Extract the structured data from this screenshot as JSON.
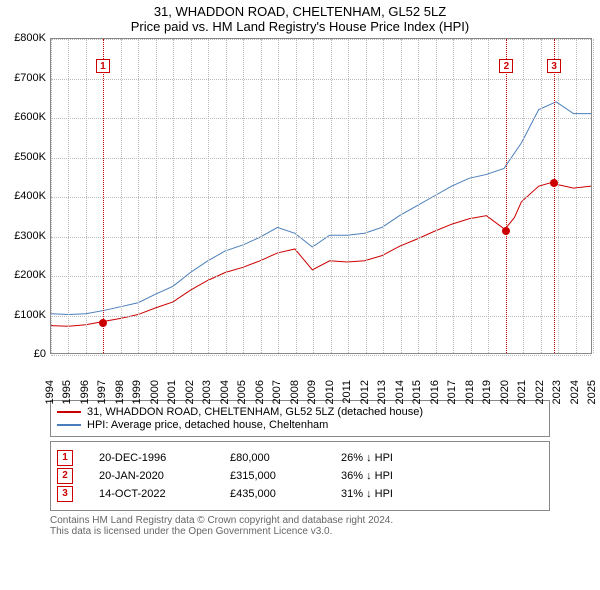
{
  "title_main": "31, WHADDON ROAD, CHELTENHAM, GL52 5LZ",
  "title_sub": "Price paid vs. HM Land Registry's House Price Index (HPI)",
  "chart": {
    "type": "line",
    "x_years": [
      1994,
      1995,
      1996,
      1997,
      1998,
      1999,
      2000,
      2001,
      2002,
      2003,
      2004,
      2005,
      2006,
      2007,
      2008,
      2009,
      2010,
      2011,
      2012,
      2013,
      2014,
      2015,
      2016,
      2017,
      2018,
      2019,
      2020,
      2021,
      2022,
      2023,
      2024,
      2025
    ],
    "ylim": [
      0,
      800000
    ],
    "ytick_step": 100000,
    "ytick_labels": [
      "£0",
      "£100K",
      "£200K",
      "£300K",
      "£400K",
      "£500K",
      "£600K",
      "£700K",
      "£800K"
    ],
    "grid_color": "#bbbbbb",
    "major_grid_color": "#dddddd",
    "background": "#ffffff",
    "label_fontsize": 11,
    "hpi": {
      "color": "#4a7ebb",
      "width": 1,
      "points": [
        [
          1994,
          100000
        ],
        [
          1995,
          98000
        ],
        [
          1996,
          100000
        ],
        [
          1997,
          108000
        ],
        [
          1998,
          118000
        ],
        [
          1999,
          128000
        ],
        [
          2000,
          150000
        ],
        [
          2001,
          170000
        ],
        [
          2002,
          205000
        ],
        [
          2003,
          235000
        ],
        [
          2004,
          260000
        ],
        [
          2005,
          275000
        ],
        [
          2006,
          295000
        ],
        [
          2007,
          320000
        ],
        [
          2008,
          305000
        ],
        [
          2009,
          270000
        ],
        [
          2010,
          300000
        ],
        [
          2011,
          300000
        ],
        [
          2012,
          305000
        ],
        [
          2013,
          320000
        ],
        [
          2014,
          350000
        ],
        [
          2015,
          375000
        ],
        [
          2016,
          400000
        ],
        [
          2017,
          425000
        ],
        [
          2018,
          445000
        ],
        [
          2019,
          455000
        ],
        [
          2020,
          470000
        ],
        [
          2021,
          535000
        ],
        [
          2022,
          620000
        ],
        [
          2023,
          640000
        ],
        [
          2024,
          610000
        ],
        [
          2025,
          610000
        ]
      ]
    },
    "prop": {
      "color": "#cc0000",
      "width": 1,
      "points": [
        [
          1994,
          70000
        ],
        [
          1995,
          68000
        ],
        [
          1996,
          72000
        ],
        [
          1996.97,
          80000
        ],
        [
          1998,
          88000
        ],
        [
          1999,
          98000
        ],
        [
          2000,
          115000
        ],
        [
          2001,
          130000
        ],
        [
          2002,
          160000
        ],
        [
          2003,
          185000
        ],
        [
          2004,
          205000
        ],
        [
          2005,
          218000
        ],
        [
          2006,
          235000
        ],
        [
          2007,
          255000
        ],
        [
          2008,
          265000
        ],
        [
          2009,
          212000
        ],
        [
          2010,
          235000
        ],
        [
          2011,
          232000
        ],
        [
          2012,
          235000
        ],
        [
          2013,
          248000
        ],
        [
          2014,
          272000
        ],
        [
          2015,
          290000
        ],
        [
          2016,
          310000
        ],
        [
          2017,
          328000
        ],
        [
          2018,
          342000
        ],
        [
          2019,
          350000
        ],
        [
          2020.05,
          315000
        ],
        [
          2020.6,
          345000
        ],
        [
          2021,
          385000
        ],
        [
          2022,
          425000
        ],
        [
          2022.78,
          435000
        ],
        [
          2023,
          430000
        ],
        [
          2024,
          420000
        ],
        [
          2025,
          425000
        ]
      ]
    },
    "events": [
      {
        "n": "1",
        "year": 1996.97,
        "value": 80000
      },
      {
        "n": "2",
        "year": 2020.05,
        "value": 315000
      },
      {
        "n": "3",
        "year": 2022.78,
        "value": 435000
      }
    ]
  },
  "legend": {
    "items": [
      {
        "color": "#cc0000",
        "label": "31, WHADDON ROAD, CHELTENHAM, GL52 5LZ (detached house)"
      },
      {
        "color": "#4a7ebb",
        "label": "HPI: Average price, detached house, Cheltenham"
      }
    ]
  },
  "event_table": [
    {
      "n": "1",
      "date": "20-DEC-1996",
      "price": "£80,000",
      "diff": "26% ↓ HPI"
    },
    {
      "n": "2",
      "date": "20-JAN-2020",
      "price": "£315,000",
      "diff": "36% ↓ HPI"
    },
    {
      "n": "3",
      "date": "14-OCT-2022",
      "price": "£435,000",
      "diff": "31% ↓ HPI"
    }
  ],
  "footer_lines": [
    "Contains HM Land Registry data © Crown copyright and database right 2024.",
    "This data is licensed under the Open Government Licence v3.0."
  ]
}
